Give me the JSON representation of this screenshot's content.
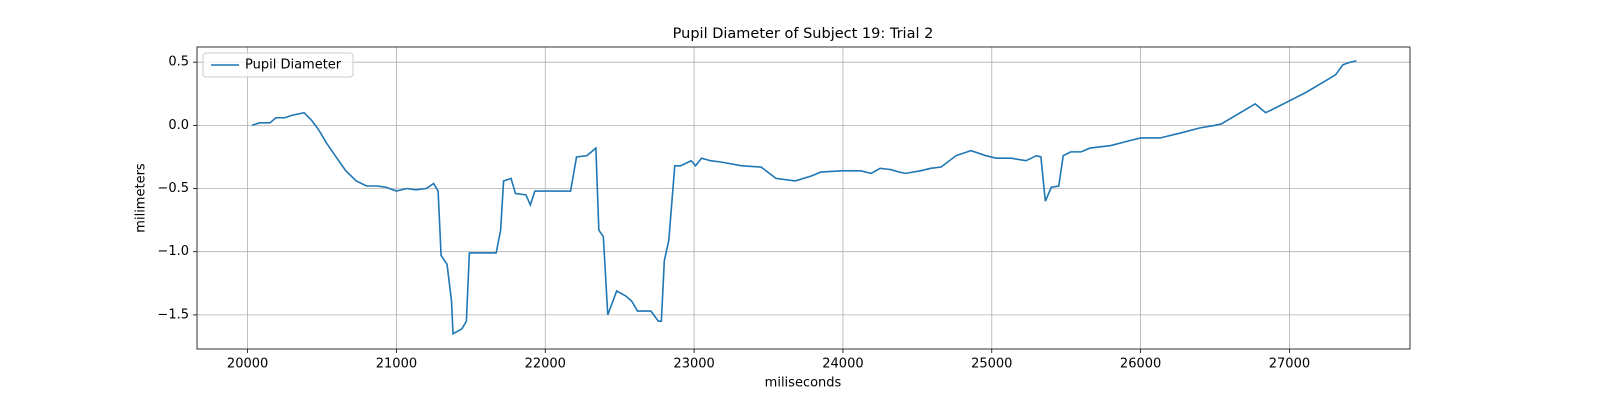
{
  "chart_data": {
    "type": "line",
    "title": "Pupil Diameter of Subject 19: Trial 2",
    "xlabel": "miliseconds",
    "ylabel": "milimeters",
    "x": [
      20030,
      20080,
      20150,
      20190,
      20250,
      20300,
      20380,
      20430,
      20480,
      20530,
      20600,
      20660,
      20730,
      20800,
      20870,
      20930,
      21000,
      21070,
      21130,
      21200,
      21250,
      21280,
      21300,
      21340,
      21370,
      21380,
      21440,
      21470,
      21490,
      21560,
      21670,
      21700,
      21720,
      21770,
      21800,
      21870,
      21900,
      21930,
      22010,
      22170,
      22210,
      22280,
      22310,
      22340,
      22360,
      22390,
      22420,
      22480,
      22510,
      22540,
      22580,
      22620,
      22710,
      22760,
      22780,
      22800,
      22830,
      22870,
      22910,
      22980,
      23010,
      23050,
      23110,
      23180,
      23320,
      23450,
      23550,
      23680,
      23790,
      23850,
      23990,
      24120,
      24190,
      24250,
      24320,
      24380,
      24420,
      24520,
      24590,
      24660,
      24760,
      24860,
      24960,
      25030,
      25130,
      25230,
      25300,
      25330,
      25360,
      25400,
      25450,
      25480,
      25530,
      25600,
      25660,
      25730,
      25800,
      25930,
      26000,
      26130,
      26270,
      26400,
      26500,
      26540,
      26670,
      26770,
      26840,
      26910,
      27010,
      27110,
      27210,
      27310,
      27360,
      27410,
      27450
    ],
    "series": [
      {
        "name": "Pupil Diameter",
        "color": "#1f77b4",
        "values": [
          0,
          0.02,
          0.02,
          0.06,
          0.06,
          0.08,
          0.1,
          0.04,
          -0.04,
          -0.14,
          -0.26,
          -0.36,
          -0.44,
          -0.48,
          -0.48,
          -0.49,
          -0.52,
          -0.5,
          -0.51,
          -0.5,
          -0.46,
          -0.52,
          -1.03,
          -1.1,
          -1.39,
          -1.65,
          -1.61,
          -1.55,
          -1.01,
          -1.01,
          -1.01,
          -0.83,
          -0.44,
          -0.42,
          -0.54,
          -0.55,
          -0.63,
          -0.52,
          -0.52,
          -0.52,
          -0.25,
          -0.24,
          -0.21,
          -0.18,
          -0.83,
          -0.88,
          -1.5,
          -1.31,
          -1.33,
          -1.35,
          -1.39,
          -1.47,
          -1.47,
          -1.55,
          -1.55,
          -1.07,
          -0.91,
          -0.32,
          -0.32,
          -0.28,
          -0.32,
          -0.26,
          -0.28,
          -0.29,
          -0.32,
          -0.33,
          -0.42,
          -0.44,
          -0.4,
          -0.37,
          -0.36,
          -0.36,
          -0.38,
          -0.34,
          -0.35,
          -0.37,
          -0.38,
          -0.36,
          -0.34,
          -0.33,
          -0.24,
          -0.2,
          -0.24,
          -0.26,
          -0.26,
          -0.28,
          -0.24,
          -0.25,
          -0.6,
          -0.49,
          -0.48,
          -0.24,
          -0.21,
          -0.21,
          -0.18,
          -0.17,
          -0.16,
          -0.12,
          -0.1,
          -0.1,
          -0.06,
          -0.02,
          0,
          0.01,
          0.1,
          0.17,
          0.1,
          0.14,
          0.2,
          0.26,
          0.33,
          0.4,
          0.48,
          0.5,
          0.51
        ]
      }
    ],
    "xlim": [
      19660,
      27810
    ],
    "xticks": [
      20000,
      21000,
      22000,
      23000,
      24000,
      25000,
      26000,
      27000
    ],
    "ylim": [
      -1.77,
      0.62
    ],
    "yticks": [
      0.5,
      {
        "value": 0,
        "label": "0.0"
      },
      {
        "value": -0.5,
        "label": "−0.5"
      },
      {
        "value": -1,
        "label": "−1.0"
      },
      {
        "value": -1.5,
        "label": "−1.5"
      }
    ],
    "grid": true,
    "legend": "upper left"
  }
}
